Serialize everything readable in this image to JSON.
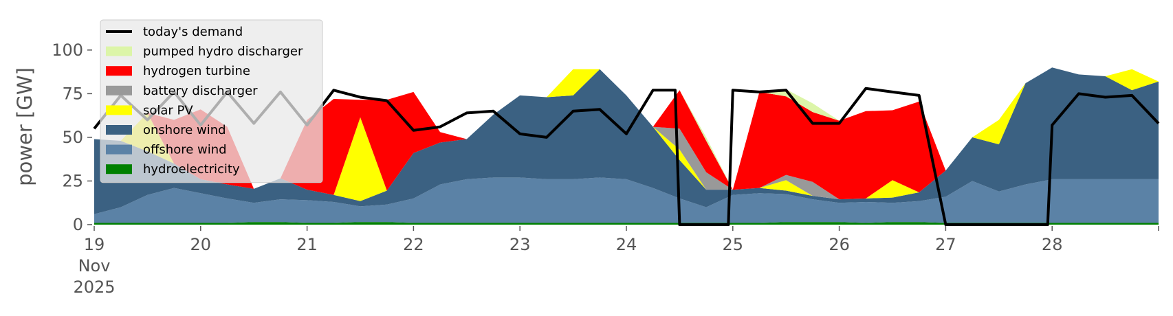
{
  "chart_data": {
    "type": "area",
    "stacked": true,
    "ylabel": "power [GW]",
    "ylim": [
      0,
      120
    ],
    "yticks": [
      0,
      25,
      50,
      75,
      100
    ],
    "xlim": [
      0,
      240
    ],
    "x_unit": "hours since 19 Nov 2025 00:00",
    "xticks": [
      {
        "x": 0,
        "lines": [
          "19",
          "Nov",
          "2025"
        ]
      },
      {
        "x": 24,
        "lines": [
          "20"
        ]
      },
      {
        "x": 48,
        "lines": [
          "21"
        ]
      },
      {
        "x": 72,
        "lines": [
          "22"
        ]
      },
      {
        "x": 96,
        "lines": [
          "23"
        ]
      },
      {
        "x": 120,
        "lines": [
          "24"
        ]
      },
      {
        "x": 144,
        "lines": [
          "25"
        ]
      },
      {
        "x": 168,
        "lines": [
          "26"
        ]
      },
      {
        "x": 192,
        "lines": [
          "27"
        ]
      },
      {
        "x": 216,
        "lines": [
          "28"
        ]
      }
    ],
    "grid": false,
    "legend_position": "top-left",
    "x": [
      0,
      6,
      12,
      18,
      24,
      30,
      36,
      42,
      48,
      54,
      60,
      66,
      72,
      78,
      84,
      90,
      96,
      102,
      108,
      114,
      120,
      126,
      132,
      138,
      144,
      150,
      156,
      162,
      168,
      174,
      180,
      186,
      192,
      198,
      204,
      210,
      216,
      222,
      228,
      234,
      240
    ],
    "series": [
      {
        "name": "hydroelectricity",
        "color": "#008000",
        "values": [
          1,
          1,
          1,
          1,
          1,
          1,
          1.5,
          1.5,
          1,
          1,
          1.5,
          1.5,
          1,
          1,
          1,
          1,
          1,
          1,
          1,
          1,
          1,
          1,
          1,
          1,
          1,
          1,
          1.5,
          1.5,
          1.5,
          1,
          1.5,
          1.5,
          1,
          1,
          1,
          1,
          1,
          1,
          1,
          1,
          1
        ]
      },
      {
        "name": "offshore wind",
        "color": "#5b82a6",
        "values": [
          5,
          9,
          16,
          20,
          17,
          14,
          11,
          13,
          13,
          12,
          9,
          10,
          14,
          22,
          25,
          26,
          26,
          25,
          25,
          26,
          25,
          20,
          14,
          9,
          16,
          17,
          16,
          13,
          11,
          12,
          11,
          12,
          15,
          24,
          18,
          22,
          25,
          25,
          25,
          25,
          25
        ]
      },
      {
        "name": "onshore wind",
        "color": "#3b6182",
        "values": [
          43,
          38,
          25,
          14,
          8,
          8,
          8,
          12,
          6,
          4,
          3,
          8,
          26,
          24,
          23,
          36,
          47,
          47,
          48,
          62,
          48,
          35,
          22,
          10,
          3,
          3,
          2,
          2,
          2,
          2,
          3,
          5,
          15,
          25,
          27,
          58,
          64,
          60,
          59,
          51,
          56
        ]
      },
      {
        "name": "solar PV",
        "color": "#ffff00",
        "values": [
          0,
          0,
          22,
          0,
          0,
          0,
          0,
          0,
          0,
          0,
          48,
          0,
          0,
          0,
          0,
          0,
          0,
          0,
          15,
          0,
          0,
          0,
          6,
          0,
          0,
          0,
          6,
          0,
          0,
          0,
          10,
          0,
          0,
          0,
          14,
          0,
          0,
          0,
          0,
          12,
          0
        ]
      },
      {
        "name": "battery discharger",
        "color": "#999999",
        "values": [
          0,
          0,
          0,
          0,
          0,
          0,
          0,
          0,
          0,
          0,
          0,
          0,
          0,
          0,
          0,
          0,
          0,
          0,
          0,
          0,
          0,
          0,
          12,
          10,
          0,
          0,
          3,
          8,
          0,
          0,
          0,
          0,
          0,
          0,
          0,
          0,
          0,
          0,
          0,
          0,
          0
        ]
      },
      {
        "name": "hydrogen turbine",
        "color": "#ff0000",
        "values": [
          0,
          0,
          0,
          25,
          40,
          33,
          0,
          0,
          40,
          55,
          10,
          52,
          35,
          6,
          0,
          0,
          0,
          0,
          0,
          0,
          0,
          0,
          22,
          18,
          0,
          55,
          45,
          40,
          45,
          50,
          40,
          52,
          0,
          0,
          0,
          0,
          0,
          0,
          0,
          0,
          0
        ]
      },
      {
        "name": "pumped hydro discharger",
        "color": "#dcf5a8",
        "values": [
          0,
          0,
          0,
          0,
          0,
          0,
          0,
          0,
          0,
          0,
          0,
          0,
          0,
          0,
          0,
          0,
          0,
          0,
          0,
          0,
          0,
          0,
          0,
          2,
          0,
          0,
          4,
          5,
          0,
          0,
          0,
          0,
          0,
          0,
          0,
          0,
          0,
          0,
          0,
          0,
          0
        ]
      }
    ],
    "demand": {
      "name": "today's demand",
      "color": "#000000",
      "x": [
        0,
        6,
        12,
        18,
        24,
        30,
        36,
        42,
        48,
        54,
        60,
        66,
        72,
        78,
        84,
        90,
        96,
        102,
        108,
        114,
        120,
        126,
        131,
        132,
        143,
        144,
        150,
        156,
        162,
        168,
        174,
        180,
        186,
        192,
        198,
        204,
        210,
        215,
        216,
        222,
        228,
        234,
        240
      ],
      "values": [
        55,
        74,
        60,
        76,
        57,
        76,
        58,
        76,
        57,
        77,
        73,
        71,
        54,
        56,
        64,
        65,
        52,
        50,
        65,
        66,
        52,
        77,
        77,
        0,
        0,
        77,
        76,
        77,
        58,
        58,
        78,
        76,
        74,
        0,
        0,
        0,
        0,
        0,
        57,
        75,
        73,
        74,
        58
      ]
    }
  }
}
